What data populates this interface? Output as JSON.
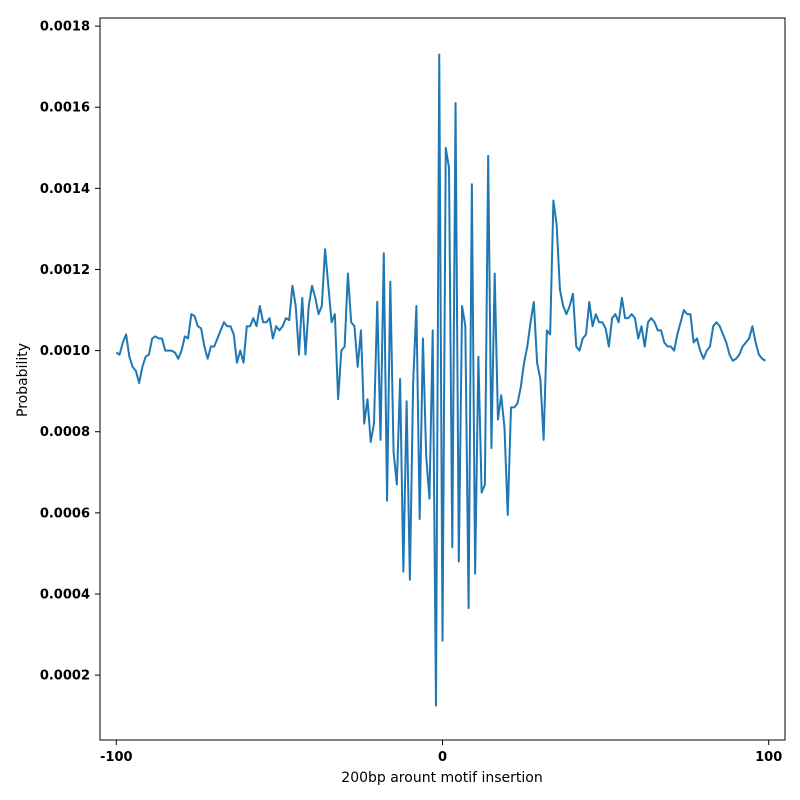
{
  "chart_data": {
    "type": "line",
    "title": "",
    "xlabel": "200bp arount motif insertion",
    "ylabel": "Probability",
    "xlim": [
      -105,
      105
    ],
    "ylim": [
      4e-05,
      0.00182
    ],
    "grid": false,
    "x_ticks": [
      -100,
      0,
      100
    ],
    "x_tick_labels": [
      "-100",
      "0",
      "100"
    ],
    "y_ticks": [
      0.0002,
      0.0004,
      0.0006,
      0.0008,
      0.001,
      0.0012,
      0.0014,
      0.0016,
      0.0018
    ],
    "y_tick_labels": [
      "0.0002",
      "0.0004",
      "0.0006",
      "0.0008",
      "0.0010",
      "0.0012",
      "0.0014",
      "0.0016",
      "0.0018"
    ],
    "line_color": "#1f77b4",
    "series": [
      {
        "x": [
          -100,
          -99,
          -98,
          -97,
          -96,
          -95,
          -94,
          -93,
          -92,
          -91,
          -90,
          -89,
          -88,
          -87,
          -86,
          -85,
          -84,
          -83,
          -82,
          -81,
          -80,
          -79,
          -78,
          -77,
          -76,
          -75,
          -74,
          -73,
          -72,
          -71,
          -70,
          -69,
          -68,
          -67,
          -66,
          -65,
          -64,
          -63,
          -62,
          -61,
          -60,
          -59,
          -58,
          -57,
          -56,
          -55,
          -54,
          -53,
          -52,
          -51,
          -50,
          -49,
          -48,
          -47,
          -46,
          -45,
          -44,
          -43,
          -42,
          -41,
          -40,
          -39,
          -38,
          -37,
          -36,
          -35,
          -34,
          -33,
          -32,
          -31,
          -30,
          -29,
          -28,
          -27,
          -26,
          -25,
          -24,
          -23,
          -22,
          -21,
          -20,
          -19,
          -18,
          -17,
          -16,
          -15,
          -14,
          -13,
          -12,
          -11,
          -10,
          -9,
          -8,
          -7,
          -6,
          -5,
          -4,
          -3,
          -2,
          -1,
          0,
          1,
          2,
          3,
          4,
          5,
          6,
          7,
          8,
          9,
          10,
          11,
          12,
          13,
          14,
          15,
          16,
          17,
          18,
          19,
          20,
          21,
          22,
          23,
          24,
          25,
          26,
          27,
          28,
          29,
          30,
          31,
          32,
          33,
          34,
          35,
          36,
          37,
          38,
          39,
          40,
          41,
          42,
          43,
          44,
          45,
          46,
          47,
          48,
          49,
          50,
          51,
          52,
          53,
          54,
          55,
          56,
          57,
          58,
          59,
          60,
          61,
          62,
          63,
          64,
          65,
          66,
          67,
          68,
          69,
          70,
          71,
          72,
          73,
          74,
          75,
          76,
          77,
          78,
          79,
          80,
          81,
          82,
          83,
          84,
          85,
          86,
          87,
          88,
          89,
          90,
          91,
          92,
          93,
          94,
          95,
          96,
          97,
          98,
          99
        ],
        "y": [
          0.000995,
          0.00099,
          0.00102,
          0.00104,
          0.000985,
          0.00096,
          0.00095,
          0.00092,
          0.00096,
          0.000985,
          0.00099,
          0.00103,
          0.001035,
          0.00103,
          0.00103,
          0.001,
          0.001,
          0.001,
          0.000995,
          0.00098,
          0.001,
          0.001035,
          0.00103,
          0.00109,
          0.001085,
          0.00106,
          0.001055,
          0.00101,
          0.00098,
          0.00101,
          0.00101,
          0.00103,
          0.00105,
          0.00107,
          0.00106,
          0.00106,
          0.00104,
          0.00097,
          0.001,
          0.00097,
          0.00106,
          0.00106,
          0.00108,
          0.00106,
          0.00111,
          0.00107,
          0.00107,
          0.00108,
          0.00103,
          0.00106,
          0.00105,
          0.00106,
          0.00108,
          0.001075,
          0.00116,
          0.00111,
          0.00099,
          0.00113,
          0.00099,
          0.00111,
          0.00116,
          0.00113,
          0.00109,
          0.00111,
          0.00125,
          0.00116,
          0.00107,
          0.00109,
          0.00088,
          0.001,
          0.00101,
          0.00119,
          0.00107,
          0.00106,
          0.00096,
          0.00105,
          0.00082,
          0.00088,
          0.000775,
          0.00082,
          0.00112,
          0.00078,
          0.00124,
          0.00063,
          0.00117,
          0.00075,
          0.00067,
          0.00093,
          0.000455,
          0.000875,
          0.000435,
          0.00092,
          0.00111,
          0.000585,
          0.00103,
          0.00074,
          0.000635,
          0.00105,
          0.000125,
          0.00173,
          0.000285,
          0.0015,
          0.00145,
          0.000515,
          0.00161,
          0.00048,
          0.00111,
          0.00106,
          0.000365,
          0.00141,
          0.00045,
          0.000985,
          0.00065,
          0.00067,
          0.00148,
          0.00076,
          0.00119,
          0.00083,
          0.00089,
          0.00081,
          0.000595,
          0.00086,
          0.00086,
          0.00087,
          0.00091,
          0.00097,
          0.00101,
          0.00107,
          0.00112,
          0.00097,
          0.00093,
          0.00078,
          0.00105,
          0.00104,
          0.00137,
          0.00131,
          0.00115,
          0.00111,
          0.00109,
          0.00111,
          0.00114,
          0.00101,
          0.001,
          0.00103,
          0.00104,
          0.00112,
          0.00106,
          0.00109,
          0.00107,
          0.00107,
          0.001055,
          0.00101,
          0.00108,
          0.00109,
          0.00107,
          0.00113,
          0.00108,
          0.00108,
          0.00109,
          0.00108,
          0.00103,
          0.00106,
          0.00101,
          0.00107,
          0.00108,
          0.00107,
          0.00105,
          0.00105,
          0.00102,
          0.00101,
          0.00101,
          0.001,
          0.00104,
          0.00107,
          0.0011,
          0.00109,
          0.00109,
          0.00102,
          0.00103,
          0.001,
          0.00098,
          0.001,
          0.00101,
          0.00106,
          0.00107,
          0.00106,
          0.00104,
          0.00102,
          0.00099,
          0.000975,
          0.00098,
          0.00099,
          0.00101,
          0.00102,
          0.00103,
          0.00106,
          0.00102,
          0.00099,
          0.00098,
          0.000975
        ]
      }
    ]
  }
}
